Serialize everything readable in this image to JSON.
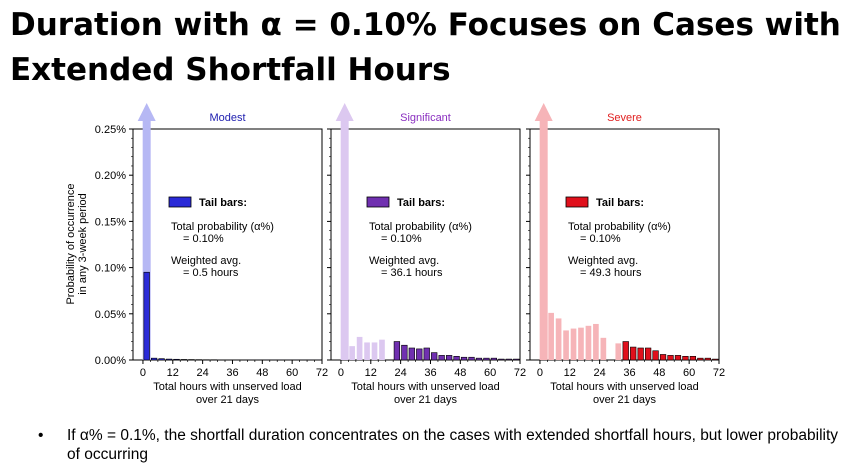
{
  "slide": {
    "title_line1": "Duration with α = 0.10% Focuses on Cases with",
    "title_line2": "Extended Shortfall Hours",
    "bullet_marker": "•",
    "bullet": "If α% = 0.1%, the shortfall duration concentrates on the cases with extended shortfall hours, but lower probability of occurring"
  },
  "chart_data": {
    "type": "bar",
    "ylabel_lines": [
      "Probability of occurrence",
      "in any 3-week period"
    ],
    "xlabel_lines": [
      "Total hours with unserved load",
      "over 21 days"
    ],
    "xlim": [
      -4,
      72
    ],
    "ylim": [
      0,
      0.25
    ],
    "ytick_values": [
      0,
      0.05,
      0.1,
      0.15,
      0.2,
      0.25
    ],
    "ytick_labels": [
      "0.00%",
      "0.05%",
      "0.10%",
      "0.15%",
      "0.20%",
      "0.25%"
    ],
    "xtick_values": [
      0,
      12,
      24,
      36,
      48,
      60,
      72
    ],
    "xtick_labels": [
      "0",
      "12",
      "24",
      "36",
      "48",
      "60",
      "72"
    ],
    "bin_width_hours": 3,
    "legend_label": "Tail bars:",
    "prob_label": "Total probability (α%)",
    "prob_value": "= 0.10%",
    "avg_label": "Weighted avg.",
    "panels": [
      {
        "name": "Modest",
        "title_color": "#2020b0",
        "tail_color": "#2a2ad8",
        "light_color": "#b6b8f4",
        "avg_value": "= 0.5 hours",
        "bins_start": [
          0,
          3,
          6,
          9,
          12,
          15,
          18,
          21,
          24,
          27,
          30,
          33,
          36,
          39,
          42,
          45,
          48,
          51,
          54,
          57,
          60,
          63,
          66,
          69
        ],
        "values": [
          0.095,
          0.002,
          0.0015,
          0.001,
          0.0008,
          0.0006,
          0.0005,
          0.0004,
          0.0003,
          0.0003,
          0.0002,
          0.0002,
          0.0002,
          0.0002,
          0.0001,
          0.0001,
          0.0001,
          0.0001,
          0.0001,
          0.0001,
          0.0001,
          0.0001,
          0.0001,
          0.0001
        ],
        "tail": [
          true,
          true,
          true,
          true,
          true,
          true,
          true,
          true,
          true,
          true,
          true,
          true,
          true,
          true,
          true,
          true,
          true,
          true,
          true,
          true,
          true,
          true,
          true,
          true
        ]
      },
      {
        "name": "Significant",
        "title_color": "#8a2fc0",
        "tail_color": "#7030b0",
        "light_color": "#dcc8f0",
        "avg_value": "= 36.1 hours",
        "bins_start": [
          0,
          3,
          6,
          9,
          12,
          15,
          18,
          21,
          24,
          27,
          30,
          33,
          36,
          39,
          42,
          45,
          48,
          51,
          54,
          57,
          60,
          63,
          66,
          69
        ],
        "values": [
          0.0,
          0.015,
          0.025,
          0.019,
          0.019,
          0.022,
          0.0,
          0.02,
          0.016,
          0.013,
          0.012,
          0.013,
          0.008,
          0.005,
          0.005,
          0.004,
          0.003,
          0.003,
          0.002,
          0.002,
          0.002,
          0.001,
          0.001,
          0.001
        ],
        "tail": [
          false,
          false,
          false,
          false,
          false,
          false,
          false,
          true,
          true,
          true,
          true,
          true,
          true,
          true,
          true,
          true,
          true,
          true,
          true,
          true,
          true,
          true,
          true,
          true
        ]
      },
      {
        "name": "Severe",
        "title_color": "#e02020",
        "tail_color": "#e0101c",
        "light_color": "#f6b4b8",
        "avg_value": "= 49.3 hours",
        "bins_start": [
          0,
          3,
          6,
          9,
          12,
          15,
          18,
          21,
          24,
          27,
          30,
          33,
          36,
          39,
          42,
          45,
          48,
          51,
          54,
          57,
          60,
          63,
          66,
          69
        ],
        "values": [
          0.051,
          0.051,
          0.045,
          0.032,
          0.034,
          0.035,
          0.037,
          0.039,
          0.024,
          0.0,
          0.018,
          0.02,
          0.014,
          0.013,
          0.013,
          0.01,
          0.006,
          0.005,
          0.005,
          0.004,
          0.004,
          0.002,
          0.002,
          0.001
        ],
        "tail": [
          false,
          false,
          false,
          false,
          false,
          false,
          false,
          false,
          false,
          false,
          false,
          true,
          true,
          true,
          true,
          true,
          true,
          true,
          true,
          true,
          true,
          true,
          true,
          true
        ]
      }
    ]
  }
}
